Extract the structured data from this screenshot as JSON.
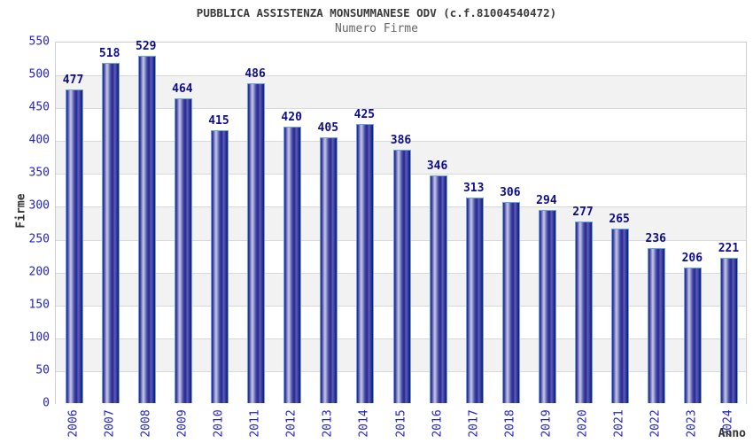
{
  "chart_data": {
    "type": "bar",
    "title": "PUBBLICA ASSISTENZA MONSUMMANESE ODV (c.f.81004540472)",
    "subtitle": "Numero Firme",
    "xlabel": "Anno",
    "ylabel": "Firme",
    "categories": [
      "2006",
      "2007",
      "2008",
      "2009",
      "2010",
      "2011",
      "2012",
      "2013",
      "2014",
      "2015",
      "2016",
      "2017",
      "2018",
      "2019",
      "2020",
      "2021",
      "2022",
      "2023",
      "2024"
    ],
    "values": [
      477,
      518,
      529,
      464,
      415,
      486,
      420,
      405,
      425,
      386,
      346,
      313,
      306,
      294,
      277,
      265,
      236,
      206,
      221
    ],
    "ylim": [
      0,
      550
    ],
    "ytick_step": 50,
    "grid": true,
    "legend": false,
    "colors": {
      "bar_edge_dark": "#26268e",
      "bar_highlight": "#c6cae4",
      "bar_cap_border": "#6ba3dd",
      "value_label": "#0d0d8c",
      "tick_label": "#2222cc",
      "title": "#3a3a3a",
      "subtitle": "#666666",
      "axis_title": "#333333",
      "band_gray": "#f2f2f2",
      "band_white": "#ffffff",
      "gridline": "#d9d9d9",
      "plot_border": "#cccccc"
    }
  }
}
